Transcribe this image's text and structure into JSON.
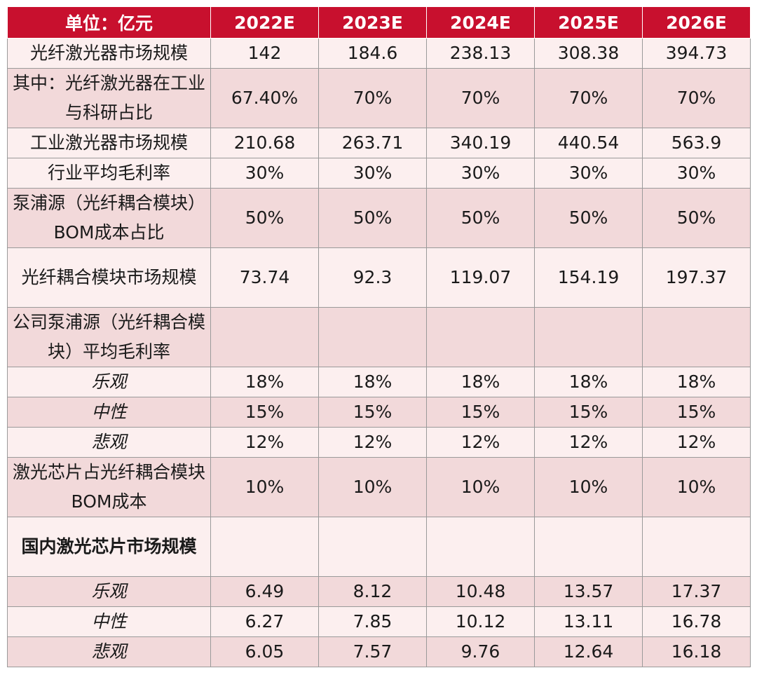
{
  "table": {
    "header": [
      "单位：亿元",
      "2022E",
      "2023E",
      "2024E",
      "2025E",
      "2026E"
    ],
    "rows": [
      {
        "label": "光纤激光器市场规模",
        "style": "normal",
        "values": [
          "142",
          "184.6",
          "238.13",
          "308.38",
          "394.73"
        ]
      },
      {
        "label": "其中：光纤激光器在工业与科研占比",
        "style": "normal",
        "values": [
          "67.40%",
          "70%",
          "70%",
          "70%",
          "70%"
        ]
      },
      {
        "label": "工业激光器市场规模",
        "style": "normal",
        "values": [
          "210.68",
          "263.71",
          "340.19",
          "440.54",
          "563.9"
        ]
      },
      {
        "label": "行业平均毛利率",
        "style": "normal",
        "values": [
          "30%",
          "30%",
          "30%",
          "30%",
          "30%"
        ]
      },
      {
        "label": "泵浦源（光纤耦合模块）BOM成本占比",
        "style": "normal",
        "values": [
          "50%",
          "50%",
          "50%",
          "50%",
          "50%"
        ]
      },
      {
        "label": "光纤耦合模块市场规模",
        "style": "normal",
        "values": [
          "73.74",
          "92.3",
          "119.07",
          "154.19",
          "197.37"
        ]
      },
      {
        "label": "公司泵浦源（光纤耦合模块）平均毛利率",
        "style": "normal",
        "values": [
          "",
          "",
          "",
          "",
          ""
        ]
      },
      {
        "label": "乐观",
        "style": "italic",
        "values": [
          "18%",
          "18%",
          "18%",
          "18%",
          "18%"
        ]
      },
      {
        "label": "中性",
        "style": "italic",
        "values": [
          "15%",
          "15%",
          "15%",
          "15%",
          "15%"
        ]
      },
      {
        "label": "悲观",
        "style": "italic",
        "values": [
          "12%",
          "12%",
          "12%",
          "12%",
          "12%"
        ]
      },
      {
        "label": "激光芯片占光纤耦合模块 BOM成本",
        "style": "normal",
        "values": [
          "10%",
          "10%",
          "10%",
          "10%",
          "10%"
        ]
      },
      {
        "label": "国内激光芯片市场规模",
        "style": "bold",
        "values": [
          "",
          "",
          "",
          "",
          ""
        ]
      },
      {
        "label": "乐观",
        "style": "italic",
        "values": [
          "6.49",
          "8.12",
          "10.48",
          "13.57",
          "17.37"
        ]
      },
      {
        "label": "中性",
        "style": "italic",
        "values": [
          "6.27",
          "7.85",
          "10.12",
          "13.11",
          "16.78"
        ]
      },
      {
        "label": "悲观",
        "style": "italic",
        "values": [
          "6.05",
          "7.57",
          "9.76",
          "12.64",
          "16.18"
        ]
      }
    ]
  },
  "colors": {
    "header_bg": "#c8102e",
    "row_light": "#fcefef",
    "row_dark": "#f2d9da",
    "border": "#9a9a9a"
  }
}
